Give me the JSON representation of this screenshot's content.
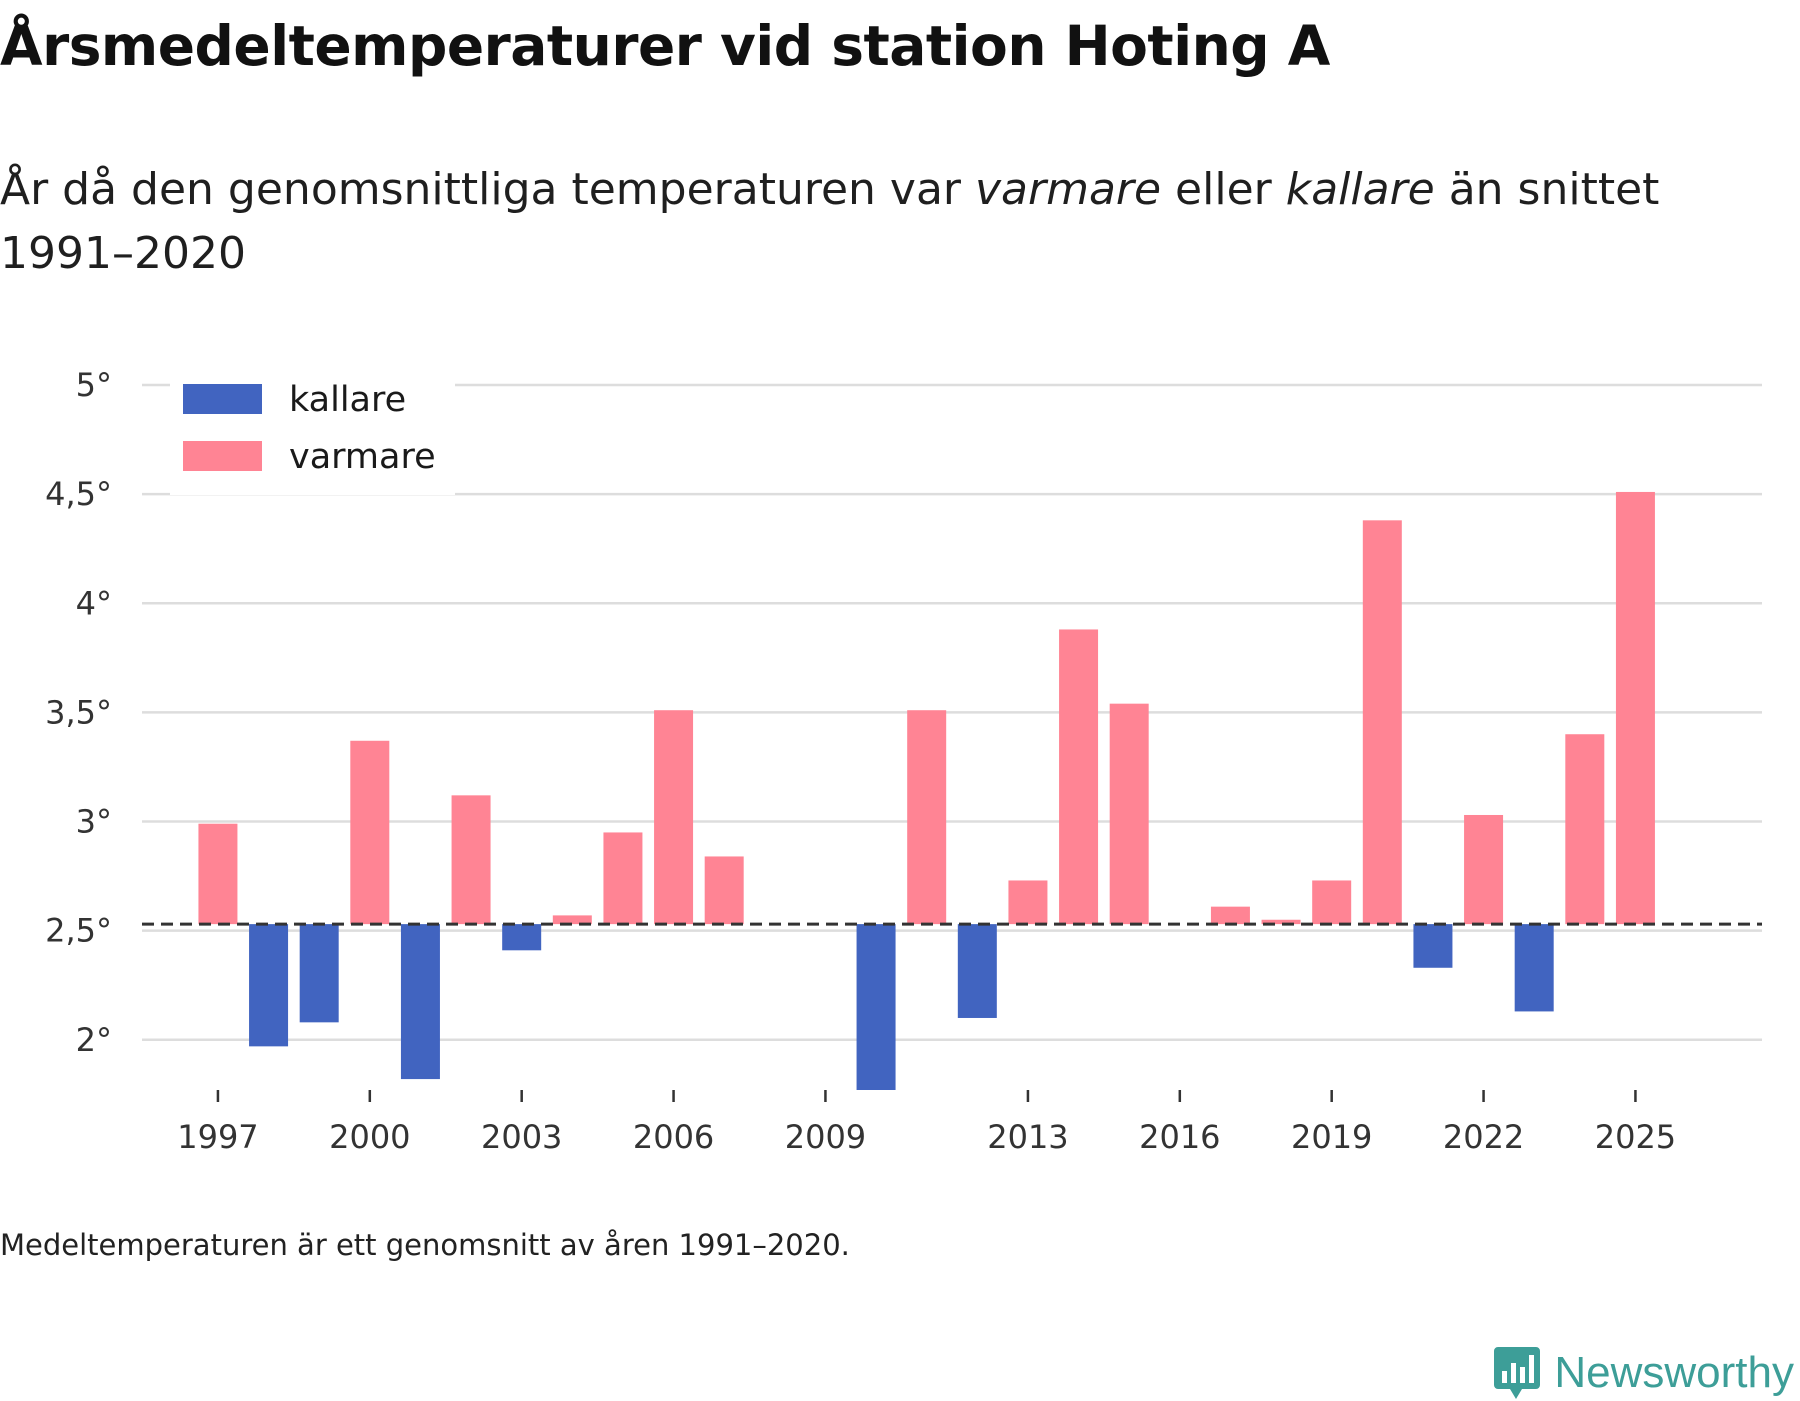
{
  "header": {
    "title": "Årsmedeltemperaturer vid station Hoting A",
    "subtitle_pre": "År då den genomsnittliga temperaturen var ",
    "subtitle_em1": "varmare",
    "subtitle_mid": " eller ",
    "subtitle_em2": "kallare",
    "subtitle_post": " än snittet 1991–2020"
  },
  "footnote": "Medeltemperaturen är ett genomsnitt av åren 1991–2020.",
  "brand": {
    "name": "Newsworthy",
    "icon": "newsworthy-logo-icon",
    "color": "#3d9e98"
  },
  "colors": {
    "kallare": "#4164c0",
    "varmare": "#ff8494",
    "baseline": "#333333",
    "grid": "#dddddd"
  },
  "chart_data": {
    "type": "bar",
    "title": "Årsmedeltemperaturer vid station Hoting A",
    "baseline": 2.53,
    "ylim": [
      1.77,
      5.0
    ],
    "yticks": [
      2,
      2.5,
      3,
      3.5,
      4,
      4.5,
      5
    ],
    "ytick_labels": [
      "2°",
      "2,5°",
      "3°",
      "3,5°",
      "4°",
      "4,5°",
      "5°"
    ],
    "xlim": [
      1995.5,
      2027.5
    ],
    "xticks": [
      1997,
      2000,
      2003,
      2006,
      2009,
      2013,
      2016,
      2019,
      2022,
      2025
    ],
    "xtick_labels": [
      "1997",
      "2000",
      "2003",
      "2006",
      "2009",
      "2013",
      "2016",
      "2019",
      "2022",
      "2025"
    ],
    "legend": [
      {
        "name": "kallare",
        "color": "#4164c0"
      },
      {
        "name": "varmare",
        "color": "#ff8494"
      }
    ],
    "legend_position": "top-left",
    "series": [
      {
        "year": 1997,
        "value": 2.99
      },
      {
        "year": 1998,
        "value": 1.97
      },
      {
        "year": 1999,
        "value": 2.08
      },
      {
        "year": 2000,
        "value": 3.37
      },
      {
        "year": 2001,
        "value": 1.82
      },
      {
        "year": 2002,
        "value": 3.12
      },
      {
        "year": 2003,
        "value": 2.41
      },
      {
        "year": 2004,
        "value": 2.57
      },
      {
        "year": 2005,
        "value": 2.95
      },
      {
        "year": 2006,
        "value": 3.51
      },
      {
        "year": 2007,
        "value": 2.84
      },
      {
        "year": 2010,
        "value": 1.77
      },
      {
        "year": 2011,
        "value": 3.51
      },
      {
        "year": 2012,
        "value": 2.1
      },
      {
        "year": 2013,
        "value": 2.73
      },
      {
        "year": 2014,
        "value": 3.88
      },
      {
        "year": 2015,
        "value": 3.54
      },
      {
        "year": 2017,
        "value": 2.61
      },
      {
        "year": 2018,
        "value": 2.55
      },
      {
        "year": 2019,
        "value": 2.73
      },
      {
        "year": 2020,
        "value": 4.38
      },
      {
        "year": 2021,
        "value": 2.33
      },
      {
        "year": 2022,
        "value": 3.03
      },
      {
        "year": 2023,
        "value": 2.13
      },
      {
        "year": 2024,
        "value": 3.4
      },
      {
        "year": 2025,
        "value": 4.51
      }
    ]
  }
}
